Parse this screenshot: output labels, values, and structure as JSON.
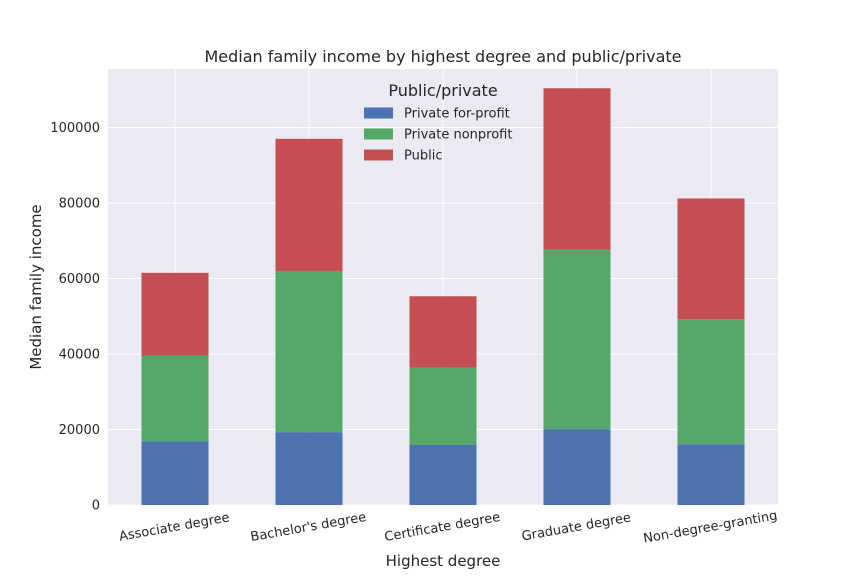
{
  "chart_data": {
    "type": "bar",
    "stacked": true,
    "title": "Median family income by highest degree and public/private",
    "xlabel": "Highest degree",
    "ylabel": "Median family income",
    "categories": [
      "Associate degree",
      "Bachelor's degree",
      "Certificate degree",
      "Graduate degree",
      "Non-degree-granting"
    ],
    "series": [
      {
        "name": "Private for-profit",
        "values": [
          16900,
          19300,
          15900,
          20100,
          16100
        ],
        "color": "#4c72b0"
      },
      {
        "name": "Private nonprofit",
        "values": [
          22600,
          42700,
          20500,
          47500,
          33100
        ],
        "color": "#55a868"
      },
      {
        "name": "Public",
        "values": [
          22000,
          35000,
          18900,
          42800,
          32000
        ],
        "color": "#c44e52"
      }
    ],
    "ylim": [
      0,
      115500
    ],
    "yticks": [
      0,
      20000,
      40000,
      60000,
      80000,
      100000
    ],
    "grid": true,
    "legend": {
      "title": "Public/private",
      "placement": "top-center"
    },
    "background_color": "#eaeaf2",
    "grid_color": "#ffffff"
  }
}
